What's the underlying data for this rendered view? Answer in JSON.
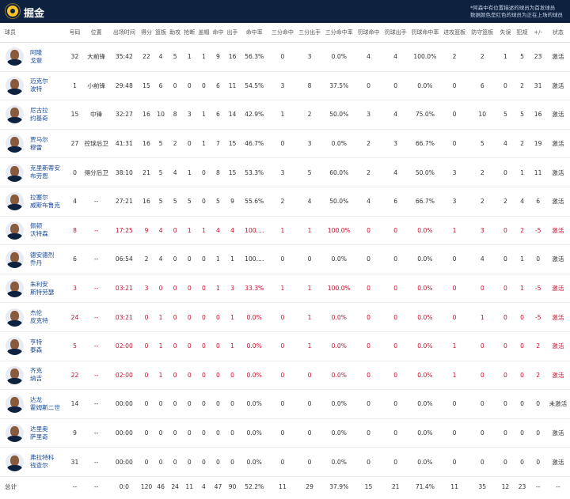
{
  "team": {
    "name": "掘金",
    "note_line1": "*阿森中有位置描述的球员为首发球员",
    "note_line2": "数据颜色是红色的球员为正在上场的球员"
  },
  "colors": {
    "header_bg": "#0e2240",
    "accent_gold": "#fec524",
    "on_court_red": "#c8102e",
    "name_blue": "#1a4a9b"
  },
  "columns": [
    "球员",
    "号码",
    "位置",
    "出场时间",
    "得分",
    "篮板",
    "助攻",
    "抢断",
    "盖帽",
    "命中",
    "出手",
    "命中率",
    "三分命中",
    "三分出手",
    "三分命中率",
    "罚球命中",
    "罚球出手",
    "罚球命中率",
    "进攻篮板",
    "防守篮板",
    "失误",
    "犯规",
    "+/-",
    "状态"
  ],
  "players": [
    {
      "name": "阿隆\n戈登",
      "no": "32",
      "pos": "大前锋",
      "min": "35:42",
      "pts": "22",
      "reb": "4",
      "ast": "5",
      "stl": "1",
      "blk": "1",
      "fgm": "9",
      "fga": "16",
      "fgp": "56.3%",
      "tpm": "0",
      "tpa": "3",
      "tpp": "0.0%",
      "ftm": "4",
      "fta": "4",
      "ftp": "100.0%",
      "oreb": "2",
      "dreb": "2",
      "tov": "1",
      "pf": "5",
      "pm": "23",
      "status": "激活",
      "on_court": false
    },
    {
      "name": "迈克尔\n波特",
      "no": "1",
      "pos": "小前锋",
      "min": "29:48",
      "pts": "15",
      "reb": "6",
      "ast": "0",
      "stl": "0",
      "blk": "0",
      "fgm": "6",
      "fga": "11",
      "fgp": "54.5%",
      "tpm": "3",
      "tpa": "8",
      "tpp": "37.5%",
      "ftm": "0",
      "fta": "0",
      "ftp": "0.0%",
      "oreb": "0",
      "dreb": "6",
      "tov": "0",
      "pf": "2",
      "pm": "31",
      "status": "激活",
      "on_court": false
    },
    {
      "name": "尼古拉\n约基奇",
      "no": "15",
      "pos": "中锋",
      "min": "32:27",
      "pts": "16",
      "reb": "10",
      "ast": "8",
      "stl": "3",
      "blk": "1",
      "fgm": "6",
      "fga": "14",
      "fgp": "42.9%",
      "tpm": "1",
      "tpa": "2",
      "tpp": "50.0%",
      "ftm": "3",
      "fta": "4",
      "ftp": "75.0%",
      "oreb": "0",
      "dreb": "10",
      "tov": "5",
      "pf": "5",
      "pm": "16",
      "status": "激活",
      "on_court": false
    },
    {
      "name": "贾马尔\n穆雷",
      "no": "27",
      "pos": "控球后卫",
      "min": "41:31",
      "pts": "16",
      "reb": "5",
      "ast": "2",
      "stl": "0",
      "blk": "1",
      "fgm": "7",
      "fga": "15",
      "fgp": "46.7%",
      "tpm": "0",
      "tpa": "3",
      "tpp": "0.0%",
      "ftm": "2",
      "fta": "3",
      "ftp": "66.7%",
      "oreb": "0",
      "dreb": "5",
      "tov": "4",
      "pf": "2",
      "pm": "19",
      "status": "激活",
      "on_court": false
    },
    {
      "name": "克里斯蒂安\n布劳恩",
      "no": "0",
      "pos": "得分后卫",
      "min": "38:10",
      "pts": "21",
      "reb": "5",
      "ast": "4",
      "stl": "1",
      "blk": "0",
      "fgm": "8",
      "fga": "15",
      "fgp": "53.3%",
      "tpm": "3",
      "tpa": "5",
      "tpp": "60.0%",
      "ftm": "2",
      "fta": "4",
      "ftp": "50.0%",
      "oreb": "3",
      "dreb": "2",
      "tov": "0",
      "pf": "1",
      "pm": "11",
      "status": "激活",
      "on_court": false
    },
    {
      "name": "拉塞尔\n威斯布鲁克",
      "no": "4",
      "pos": "--",
      "min": "27:21",
      "pts": "16",
      "reb": "5",
      "ast": "5",
      "stl": "5",
      "blk": "0",
      "fgm": "5",
      "fga": "9",
      "fgp": "55.6%",
      "tpm": "2",
      "tpa": "4",
      "tpp": "50.0%",
      "ftm": "4",
      "fta": "6",
      "ftp": "66.7%",
      "oreb": "3",
      "dreb": "2",
      "tov": "2",
      "pf": "4",
      "pm": "6",
      "status": "激活",
      "on_court": false
    },
    {
      "name": "佩顿\n沃特森",
      "no": "8",
      "pos": "--",
      "min": "17:25",
      "pts": "9",
      "reb": "4",
      "ast": "0",
      "stl": "1",
      "blk": "1",
      "fgm": "4",
      "fga": "4",
      "fgp": "100....",
      "tpm": "1",
      "tpa": "1",
      "tpp": "100.0%",
      "ftm": "0",
      "fta": "0",
      "ftp": "0.0%",
      "oreb": "1",
      "dreb": "3",
      "tov": "0",
      "pf": "2",
      "pm": "-5",
      "status": "激活",
      "on_court": true
    },
    {
      "name": "德安德烈\n乔丹",
      "no": "6",
      "pos": "--",
      "min": "06:54",
      "pts": "2",
      "reb": "4",
      "ast": "0",
      "stl": "0",
      "blk": "0",
      "fgm": "1",
      "fga": "1",
      "fgp": "100....",
      "tpm": "0",
      "tpa": "0",
      "tpp": "0.0%",
      "ftm": "0",
      "fta": "0",
      "ftp": "0.0%",
      "oreb": "0",
      "dreb": "4",
      "tov": "0",
      "pf": "1",
      "pm": "0",
      "status": "激活",
      "on_court": false
    },
    {
      "name": "朱利安\n斯特劳瑟",
      "no": "3",
      "pos": "--",
      "min": "03:21",
      "pts": "3",
      "reb": "0",
      "ast": "0",
      "stl": "0",
      "blk": "0",
      "fgm": "1",
      "fga": "3",
      "fgp": "33.3%",
      "tpm": "1",
      "tpa": "1",
      "tpp": "100.0%",
      "ftm": "0",
      "fta": "0",
      "ftp": "0.0%",
      "oreb": "0",
      "dreb": "0",
      "tov": "0",
      "pf": "1",
      "pm": "-5",
      "status": "激活",
      "on_court": true
    },
    {
      "name": "杰伦\n皮克特",
      "no": "24",
      "pos": "--",
      "min": "03:21",
      "pts": "0",
      "reb": "1",
      "ast": "0",
      "stl": "0",
      "blk": "0",
      "fgm": "0",
      "fga": "1",
      "fgp": "0.0%",
      "tpm": "0",
      "tpa": "1",
      "tpp": "0.0%",
      "ftm": "0",
      "fta": "0",
      "ftp": "0.0%",
      "oreb": "0",
      "dreb": "1",
      "tov": "0",
      "pf": "0",
      "pm": "-5",
      "status": "激活",
      "on_court": true
    },
    {
      "name": "亨特\n泰森",
      "no": "5",
      "pos": "--",
      "min": "02:00",
      "pts": "0",
      "reb": "1",
      "ast": "0",
      "stl": "0",
      "blk": "0",
      "fgm": "0",
      "fga": "1",
      "fgp": "0.0%",
      "tpm": "0",
      "tpa": "1",
      "tpp": "0.0%",
      "ftm": "0",
      "fta": "0",
      "ftp": "0.0%",
      "oreb": "1",
      "dreb": "0",
      "tov": "0",
      "pf": "0",
      "pm": "2",
      "status": "激活",
      "on_court": true
    },
    {
      "name": "齐克\n纳吉",
      "no": "22",
      "pos": "--",
      "min": "02:00",
      "pts": "0",
      "reb": "1",
      "ast": "0",
      "stl": "0",
      "blk": "0",
      "fgm": "0",
      "fga": "0",
      "fgp": "0.0%",
      "tpm": "0",
      "tpa": "0",
      "tpp": "0.0%",
      "ftm": "0",
      "fta": "0",
      "ftp": "0.0%",
      "oreb": "1",
      "dreb": "0",
      "tov": "0",
      "pf": "0",
      "pm": "2",
      "status": "激活",
      "on_court": true
    },
    {
      "name": "达龙\n霍姆斯二世",
      "no": "14",
      "pos": "--",
      "min": "00:00",
      "pts": "0",
      "reb": "0",
      "ast": "0",
      "stl": "0",
      "blk": "0",
      "fgm": "0",
      "fga": "0",
      "fgp": "0.0%",
      "tpm": "0",
      "tpa": "0",
      "tpp": "0.0%",
      "ftm": "0",
      "fta": "0",
      "ftp": "0.0%",
      "oreb": "0",
      "dreb": "0",
      "tov": "0",
      "pf": "0",
      "pm": "0",
      "status": "未激活",
      "on_court": false
    },
    {
      "name": "达里奥\n萨里奇",
      "no": "9",
      "pos": "--",
      "min": "00:00",
      "pts": "0",
      "reb": "0",
      "ast": "0",
      "stl": "0",
      "blk": "0",
      "fgm": "0",
      "fga": "0",
      "fgp": "0.0%",
      "tpm": "0",
      "tpa": "0",
      "tpp": "0.0%",
      "ftm": "0",
      "fta": "0",
      "ftp": "0.0%",
      "oreb": "0",
      "dreb": "0",
      "tov": "0",
      "pf": "0",
      "pm": "0",
      "status": "激活",
      "on_court": false
    },
    {
      "name": "弗拉特科\n钱查尔",
      "no": "31",
      "pos": "--",
      "min": "00:00",
      "pts": "0",
      "reb": "0",
      "ast": "0",
      "stl": "0",
      "blk": "0",
      "fgm": "0",
      "fga": "0",
      "fgp": "0.0%",
      "tpm": "0",
      "tpa": "0",
      "tpp": "0.0%",
      "ftm": "0",
      "fta": "0",
      "ftp": "0.0%",
      "oreb": "0",
      "dreb": "0",
      "tov": "0",
      "pf": "0",
      "pm": "0",
      "status": "激活",
      "on_court": false
    }
  ],
  "totals": {
    "label": "总计",
    "no": "--",
    "pos": "--",
    "min": "0:0",
    "pts": "120",
    "reb": "46",
    "ast": "24",
    "stl": "11",
    "blk": "4",
    "fgm": "47",
    "fga": "90",
    "fgp": "52.2%",
    "tpm": "11",
    "tpa": "29",
    "tpp": "37.9%",
    "ftm": "15",
    "fta": "21",
    "ftp": "71.4%",
    "oreb": "11",
    "dreb": "35",
    "tov": "12",
    "pf": "23",
    "pm": "--",
    "status": "--"
  }
}
